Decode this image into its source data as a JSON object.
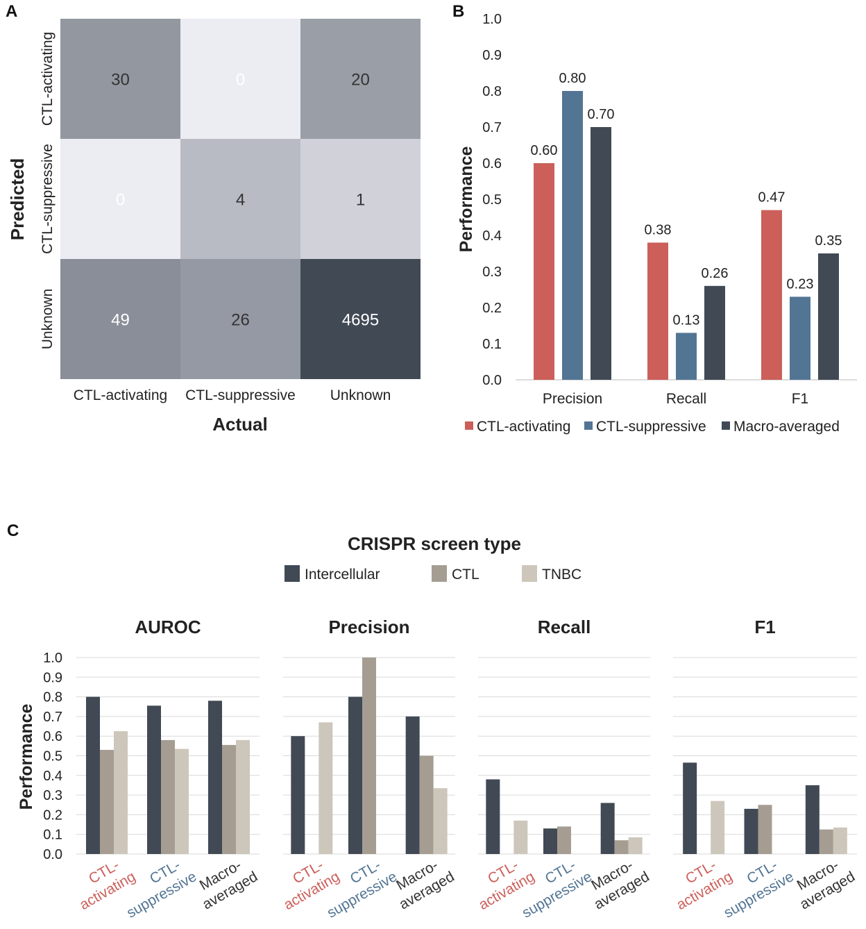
{
  "colors": {
    "activating": "#cc5f5a",
    "suppressive": "#537594",
    "macro": "#414955",
    "intercellular": "#414955",
    "ctl": "#a59d92",
    "tnbc": "#cdc6bb",
    "grid": "#d9d9d9",
    "text": "#333333"
  },
  "panel_labels": {
    "a": "A",
    "b": "B",
    "c": "C"
  },
  "chart_data": [
    {
      "id": "A",
      "type": "heatmap",
      "title": "",
      "xlabel": "Actual",
      "ylabel": "Predicted",
      "x_categories": [
        "CTL-activating",
        "CTL-suppressive",
        "Unknown"
      ],
      "y_categories": [
        "CTL-activating",
        "CTL-suppressive",
        "Unknown"
      ],
      "values": [
        [
          30,
          0,
          20
        ],
        [
          0,
          4,
          1
        ],
        [
          49,
          26,
          4695
        ]
      ],
      "display": [
        [
          "30",
          "0",
          "20"
        ],
        [
          "0",
          "4",
          "1"
        ],
        [
          "49",
          "26",
          "4695"
        ]
      ]
    },
    {
      "id": "B",
      "type": "bar",
      "categories": [
        "Precision",
        "Recall",
        "F1"
      ],
      "series": [
        {
          "name": "CTL-activating",
          "values": [
            0.6,
            0.38,
            0.47
          ]
        },
        {
          "name": "CTL-suppressive",
          "values": [
            0.8,
            0.13,
            0.23
          ]
        },
        {
          "name": "Macro-averaged",
          "values": [
            0.7,
            0.26,
            0.35
          ]
        }
      ],
      "data_labels": [
        [
          "0.60",
          "0.38",
          "0.47"
        ],
        [
          "0.80",
          "0.13",
          "0.23"
        ],
        [
          "0.70",
          "0.26",
          "0.35"
        ]
      ],
      "ylabel": "Performance",
      "xlabel": "",
      "ylim": [
        0,
        1.0
      ],
      "yticks": [
        "0.0",
        "0.1",
        "0.2",
        "0.3",
        "0.4",
        "0.5",
        "0.6",
        "0.7",
        "0.8",
        "0.9",
        "1.0"
      ],
      "legend": "bottom"
    },
    {
      "id": "C",
      "type": "bar",
      "title": "CRISPR screen type",
      "legend": "top",
      "legend_entries": [
        "Intercellular",
        "CTL",
        "TNBC"
      ],
      "ylabel": "Performance",
      "ylim": [
        0,
        1.0
      ],
      "yticks": [
        "0.0",
        "0.1",
        "0.2",
        "0.3",
        "0.4",
        "0.5",
        "0.6",
        "0.7",
        "0.8",
        "0.9",
        "1.0"
      ],
      "category_labels": [
        {
          "line1": "CTL-",
          "line2": "activating",
          "style": "activating"
        },
        {
          "line1": "CTL-",
          "line2": "suppressive",
          "style": "suppressive"
        },
        {
          "line1": "Macro-",
          "line2": "averaged",
          "style": "macro"
        }
      ],
      "subplots": [
        {
          "title": "AUROC",
          "values": [
            [
              0.8,
              0.53,
              0.625
            ],
            [
              0.755,
              0.58,
              0.535
            ],
            [
              0.78,
              0.555,
              0.58
            ]
          ]
        },
        {
          "title": "Precision",
          "values": [
            [
              0.6,
              0.0,
              0.67
            ],
            [
              0.8,
              1.0,
              0.0
            ],
            [
              0.7,
              0.5,
              0.335
            ]
          ]
        },
        {
          "title": "Recall",
          "values": [
            [
              0.38,
              0.0,
              0.17
            ],
            [
              0.13,
              0.14,
              0.0
            ],
            [
              0.26,
              0.07,
              0.085
            ]
          ]
        },
        {
          "title": "F1",
          "values": [
            [
              0.465,
              0.0,
              0.27
            ],
            [
              0.23,
              0.25,
              0.0
            ],
            [
              0.35,
              0.125,
              0.135
            ]
          ]
        }
      ]
    }
  ]
}
